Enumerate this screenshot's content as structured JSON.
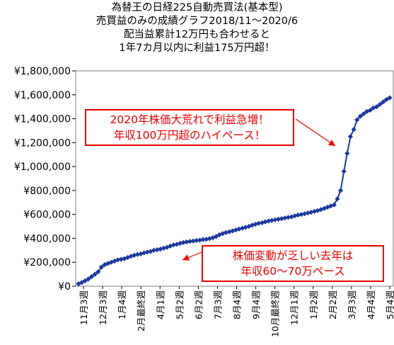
{
  "titles": {
    "line1": "為替王の日経225自動売買法(基本型)",
    "line2": "売買益のみの成績グラフ2018/11～2020/6",
    "line3": "配当益累計12万円も合わせると",
    "line4": "1年7カ月以内に利益175万円超！"
  },
  "annotations": {
    "box1_line1": "2020年株価大荒れで利益急増！",
    "box1_line2": "年収100万円超のハイペース！",
    "box2_line1": "株価変動が乏しい去年は",
    "box2_line2": "年収60～70万ペース"
  },
  "colors": {
    "series": "#1a3a9c",
    "annotation": "#e60000",
    "arrow": "#e60000"
  },
  "chart_data": {
    "type": "line",
    "ylim": [
      0,
      1800000
    ],
    "y_ticks": [
      "¥0",
      "¥200,000",
      "¥400,000",
      "¥600,000",
      "¥800,000",
      "¥1,000,000",
      "¥1,200,000",
      "¥1,400,000",
      "¥1,600,000",
      "¥1,800,000"
    ],
    "y_tick_values": [
      0,
      200000,
      400000,
      600000,
      800000,
      1000000,
      1200000,
      1400000,
      1600000,
      1800000
    ],
    "x_tick_labels": [
      "11月3週",
      "12月3週",
      "1月4週",
      "2月最終週",
      "4月1週",
      "5月2週",
      "6月2週",
      "7月3週",
      "8月4週",
      "9月4週",
      "10月最終週",
      "12月1週",
      "1月2週",
      "2月2週",
      "3月3週",
      "4月4週",
      "5月4週"
    ],
    "grid": false,
    "markers": true,
    "series": [
      {
        "values": [
          20000,
          30000,
          45000,
          60000,
          80000,
          100000,
          120000,
          160000,
          180000,
          190000,
          200000,
          210000,
          220000,
          225000,
          230000,
          240000,
          250000,
          258000,
          265000,
          270000,
          278000,
          285000,
          290000,
          300000,
          305000,
          310000,
          318000,
          325000,
          335000,
          345000,
          350000,
          358000,
          365000,
          370000,
          375000,
          378000,
          382000,
          385000,
          390000,
          392000,
          398000,
          405000,
          415000,
          430000,
          440000,
          448000,
          455000,
          462000,
          470000,
          478000,
          485000,
          492000,
          500000,
          510000,
          518000,
          525000,
          530000,
          538000,
          545000,
          550000,
          555000,
          560000,
          565000,
          570000,
          575000,
          580000,
          588000,
          595000,
          600000,
          605000,
          612000,
          618000,
          625000,
          632000,
          640000,
          650000,
          660000,
          670000,
          680000,
          730000,
          800000,
          960000,
          1110000,
          1250000,
          1310000,
          1390000,
          1420000,
          1440000,
          1460000,
          1470000,
          1490000,
          1500000,
          1520000,
          1540000,
          1560000,
          1575000
        ]
      }
    ]
  }
}
